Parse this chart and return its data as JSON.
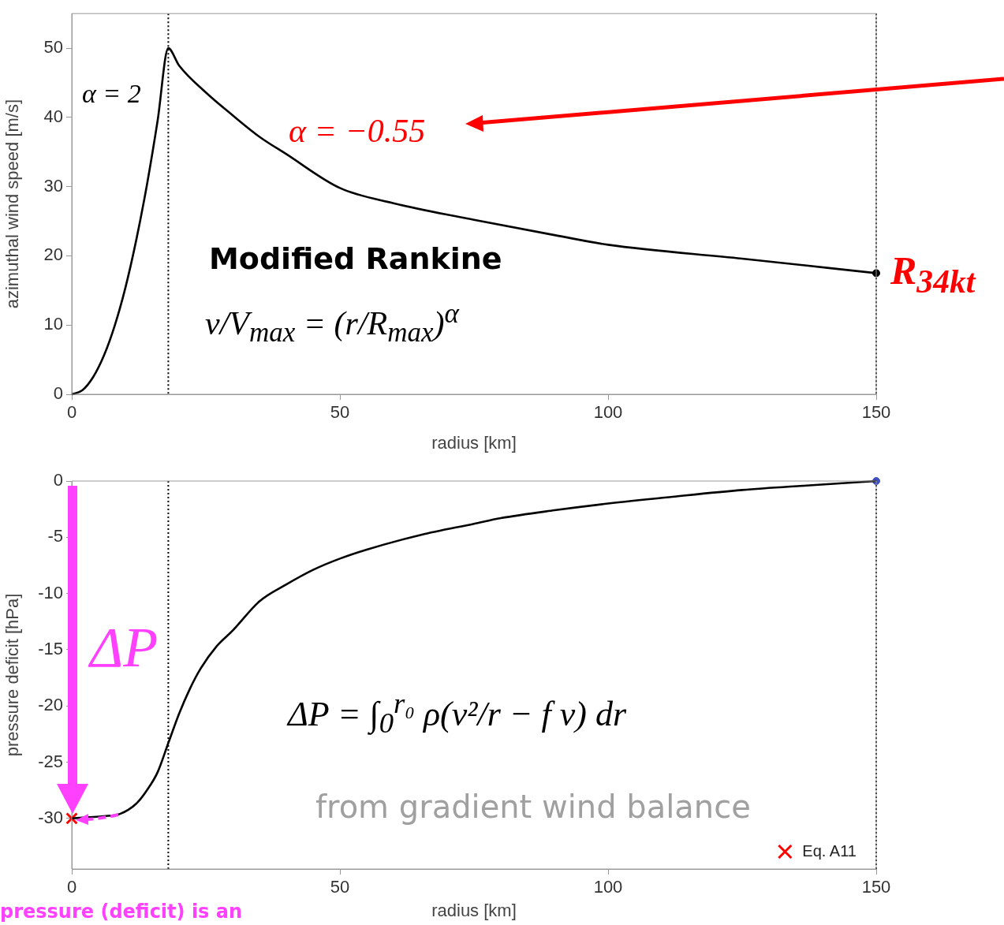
{
  "chart_data": [
    {
      "type": "line",
      "xlabel": "radius [km]",
      "ylabel": "azimuthal wind speed [m/s]",
      "xlim": [
        0,
        150
      ],
      "ylim": [
        0,
        55
      ],
      "xticks": [
        0,
        50,
        100,
        150
      ],
      "yticks": [
        0,
        10,
        20,
        30,
        40,
        50
      ],
      "series": [
        {
          "color": "#000000",
          "x": [
            0,
            2,
            4,
            6,
            8,
            10,
            12,
            14,
            16,
            18,
            20,
            25,
            30,
            35,
            40,
            50,
            60,
            75,
            90,
            100,
            125,
            150
          ],
          "values": [
            0,
            0.6,
            2.5,
            5.6,
            9.9,
            15.4,
            22.2,
            30.2,
            39.5,
            50,
            47.5,
            43.6,
            40.3,
            37.2,
            34.7,
            29.8,
            27.6,
            25.2,
            23,
            21.6,
            19.6,
            17.5
          ]
        },
        {
          "type": "scatter",
          "color": "#000000",
          "marker": "circle",
          "x": [
            150
          ],
          "values": [
            17.5
          ]
        }
      ],
      "ref_lines": [
        {
          "axis": "x",
          "value": 18,
          "color": "#000000",
          "line_style": "dotted"
        },
        {
          "axis": "x",
          "value": 150,
          "color": "#000000",
          "line_style": "dotted"
        }
      ],
      "annotations": [
        "α = 2",
        "α = −0.55",
        "Modified Rankine",
        "v/V$_{max}$ = (r/R$_{max}$)$^{α}$",
        {
          "text": "R$_{34kt}$",
          "x": 150,
          "y": 17.5
        }
      ]
    },
    {
      "type": "line",
      "xlabel": "radius [km]",
      "ylabel": "pressure deficit [hPa]",
      "xlim": [
        0,
        150
      ],
      "ylim": [
        -34.5,
        0
      ],
      "xticks": [
        0,
        50,
        100,
        150
      ],
      "yticks": [
        0,
        -5,
        -10,
        -15,
        -20,
        -25,
        -30
      ],
      "legend": "bottom right",
      "series": [
        {
          "color": "#000000",
          "x": [
            0,
            3,
            6,
            9,
            12,
            14,
            16,
            18,
            20,
            22,
            24,
            27,
            30,
            35,
            40,
            45,
            50,
            55,
            65,
            75,
            80,
            90,
            100,
            112,
            125,
            137,
            150
          ],
          "values": [
            -30,
            -29.9,
            -29.8,
            -29.6,
            -28.7,
            -27.5,
            -25.9,
            -23.3,
            -20.7,
            -18.5,
            -16.7,
            -14.7,
            -13.3,
            -10.7,
            -9.2,
            -7.9,
            -6.9,
            -6.1,
            -4.8,
            -3.8,
            -3.3,
            -2.6,
            -2,
            -1.4,
            -0.8,
            -0.4,
            0
          ]
        },
        {
          "type": "scatter",
          "name": "Eq. A11",
          "color": "#ff0000",
          "marker": "cross",
          "x": [
            0
          ],
          "values": [
            -30
          ]
        },
        {
          "type": "scatter",
          "color": "#4050c0",
          "marker": "circle",
          "x": [
            150
          ],
          "values": [
            0
          ]
        }
      ],
      "ref_lines": [
        {
          "axis": "x",
          "value": 18,
          "color": "#000000",
          "line_style": "dotted"
        },
        {
          "axis": "x",
          "value": 150,
          "color": "#000000",
          "line_style": "dotted"
        }
      ],
      "annotations": [
        "ΔP",
        "ΔP = ∫$_{0}$$^{r₀}$ ρ(v²/r − f v) dr",
        "from gradient wind balance",
        "pressure (deficit) is an"
      ]
    }
  ]
}
